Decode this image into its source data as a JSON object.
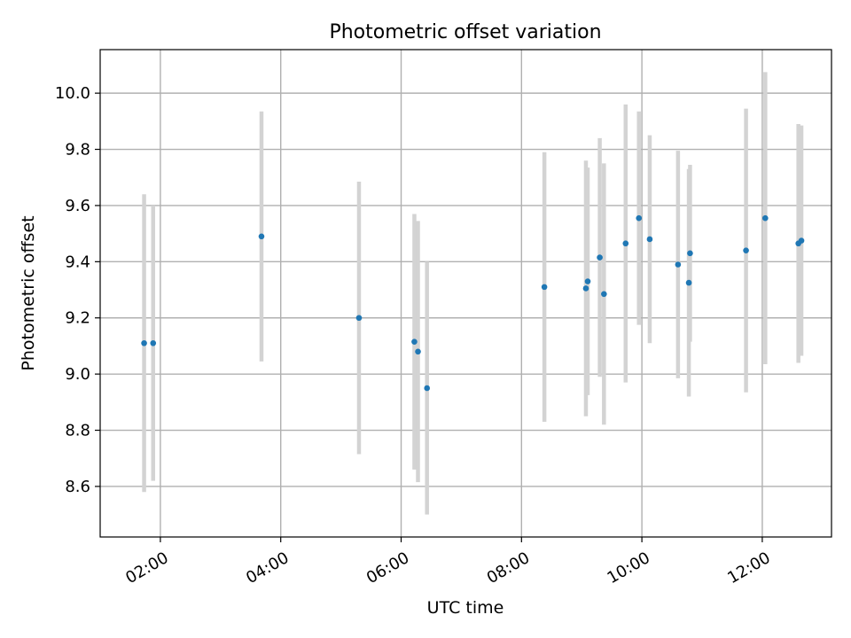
{
  "chart_data": {
    "type": "scatter",
    "title": "Photometric offset variation",
    "xlabel": "UTC time",
    "ylabel": "Photometric offset",
    "x_unit": "hours UTC",
    "xlim": [
      1.0,
      13.15
    ],
    "ylim": [
      8.42,
      10.155
    ],
    "grid": true,
    "x_ticks": [
      {
        "value": 2,
        "label": "02:00"
      },
      {
        "value": 4,
        "label": "04:00"
      },
      {
        "value": 6,
        "label": "06:00"
      },
      {
        "value": 8,
        "label": "08:00"
      },
      {
        "value": 10,
        "label": "10:00"
      },
      {
        "value": 12,
        "label": "12:00"
      }
    ],
    "y_ticks": [
      {
        "value": 8.6,
        "label": "8.6"
      },
      {
        "value": 8.8,
        "label": "8.8"
      },
      {
        "value": 9.0,
        "label": "9.0"
      },
      {
        "value": 9.2,
        "label": "9.2"
      },
      {
        "value": 9.4,
        "label": "9.4"
      },
      {
        "value": 9.6,
        "label": "9.6"
      },
      {
        "value": 9.8,
        "label": "9.8"
      },
      {
        "value": 10.0,
        "label": "10.0"
      }
    ],
    "colors": {
      "point": "#1f77b4",
      "errorbar": "#d3d3d3",
      "grid": "#b0b0b0"
    },
    "points": [
      {
        "x": 1.73,
        "y": 9.11,
        "err": 0.53
      },
      {
        "x": 1.88,
        "y": 9.11,
        "err": 0.49
      },
      {
        "x": 3.68,
        "y": 9.49,
        "err": 0.445
      },
      {
        "x": 5.3,
        "y": 9.2,
        "err": 0.485
      },
      {
        "x": 6.22,
        "y": 9.115,
        "err": 0.455
      },
      {
        "x": 6.28,
        "y": 9.08,
        "err": 0.465
      },
      {
        "x": 6.43,
        "y": 8.95,
        "err": 0.45
      },
      {
        "x": 8.38,
        "y": 9.31,
        "err": 0.48
      },
      {
        "x": 9.07,
        "y": 9.305,
        "err": 0.455
      },
      {
        "x": 9.1,
        "y": 9.33,
        "err": 0.405
      },
      {
        "x": 9.3,
        "y": 9.415,
        "err": 0.425
      },
      {
        "x": 9.37,
        "y": 9.285,
        "err": 0.465
      },
      {
        "x": 9.73,
        "y": 9.465,
        "err": 0.495
      },
      {
        "x": 9.95,
        "y": 9.555,
        "err": 0.38
      },
      {
        "x": 10.13,
        "y": 9.48,
        "err": 0.37
      },
      {
        "x": 10.6,
        "y": 9.39,
        "err": 0.405
      },
      {
        "x": 10.78,
        "y": 9.325,
        "err": 0.405
      },
      {
        "x": 10.8,
        "y": 9.43,
        "err": 0.315
      },
      {
        "x": 11.73,
        "y": 9.44,
        "err": 0.505
      },
      {
        "x": 12.05,
        "y": 9.555,
        "err": 0.52
      },
      {
        "x": 12.6,
        "y": 9.465,
        "err": 0.425
      },
      {
        "x": 12.65,
        "y": 9.475,
        "err": 0.41
      }
    ]
  }
}
